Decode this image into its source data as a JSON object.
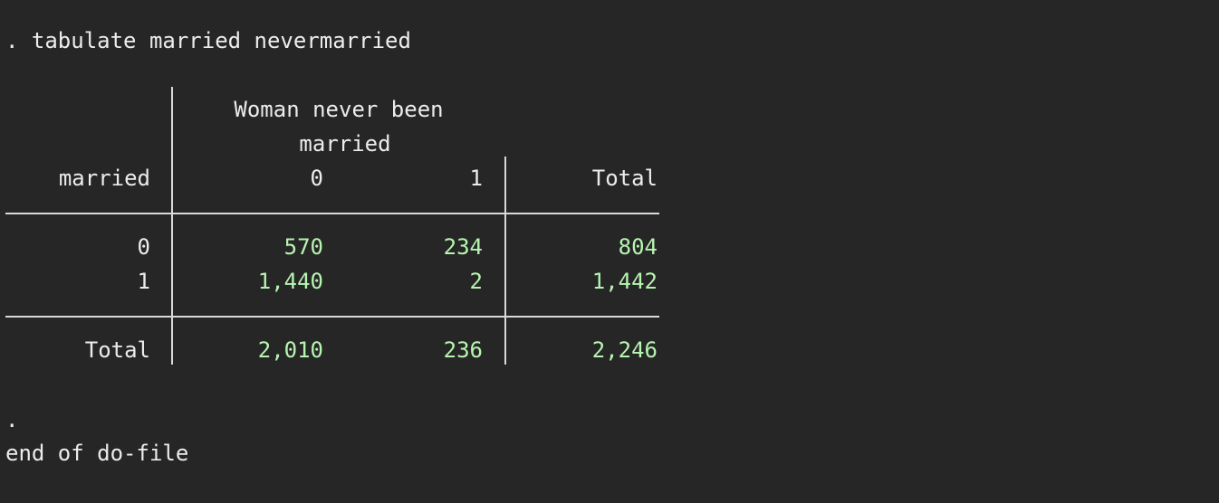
{
  "command": ". tabulate married nevermarried",
  "table": {
    "col_var_label_line1": "Woman never been",
    "col_var_label_line2": "married",
    "row_var": "married",
    "col_headers": [
      "0",
      "1",
      "Total"
    ],
    "rows": [
      {
        "label": "0",
        "values": [
          "570",
          "234",
          "804"
        ]
      },
      {
        "label": "1",
        "values": [
          "1,440",
          "2",
          "1,442"
        ]
      }
    ],
    "total": {
      "label": "Total",
      "values": [
        "2,010",
        "236",
        "2,246"
      ]
    }
  },
  "prompt_dot": ".",
  "end_message": "end of do-file",
  "colors": {
    "background": "#262626",
    "text": "#ececec",
    "numbers": "#b6f5b0",
    "rules": "#d9d9d9"
  }
}
